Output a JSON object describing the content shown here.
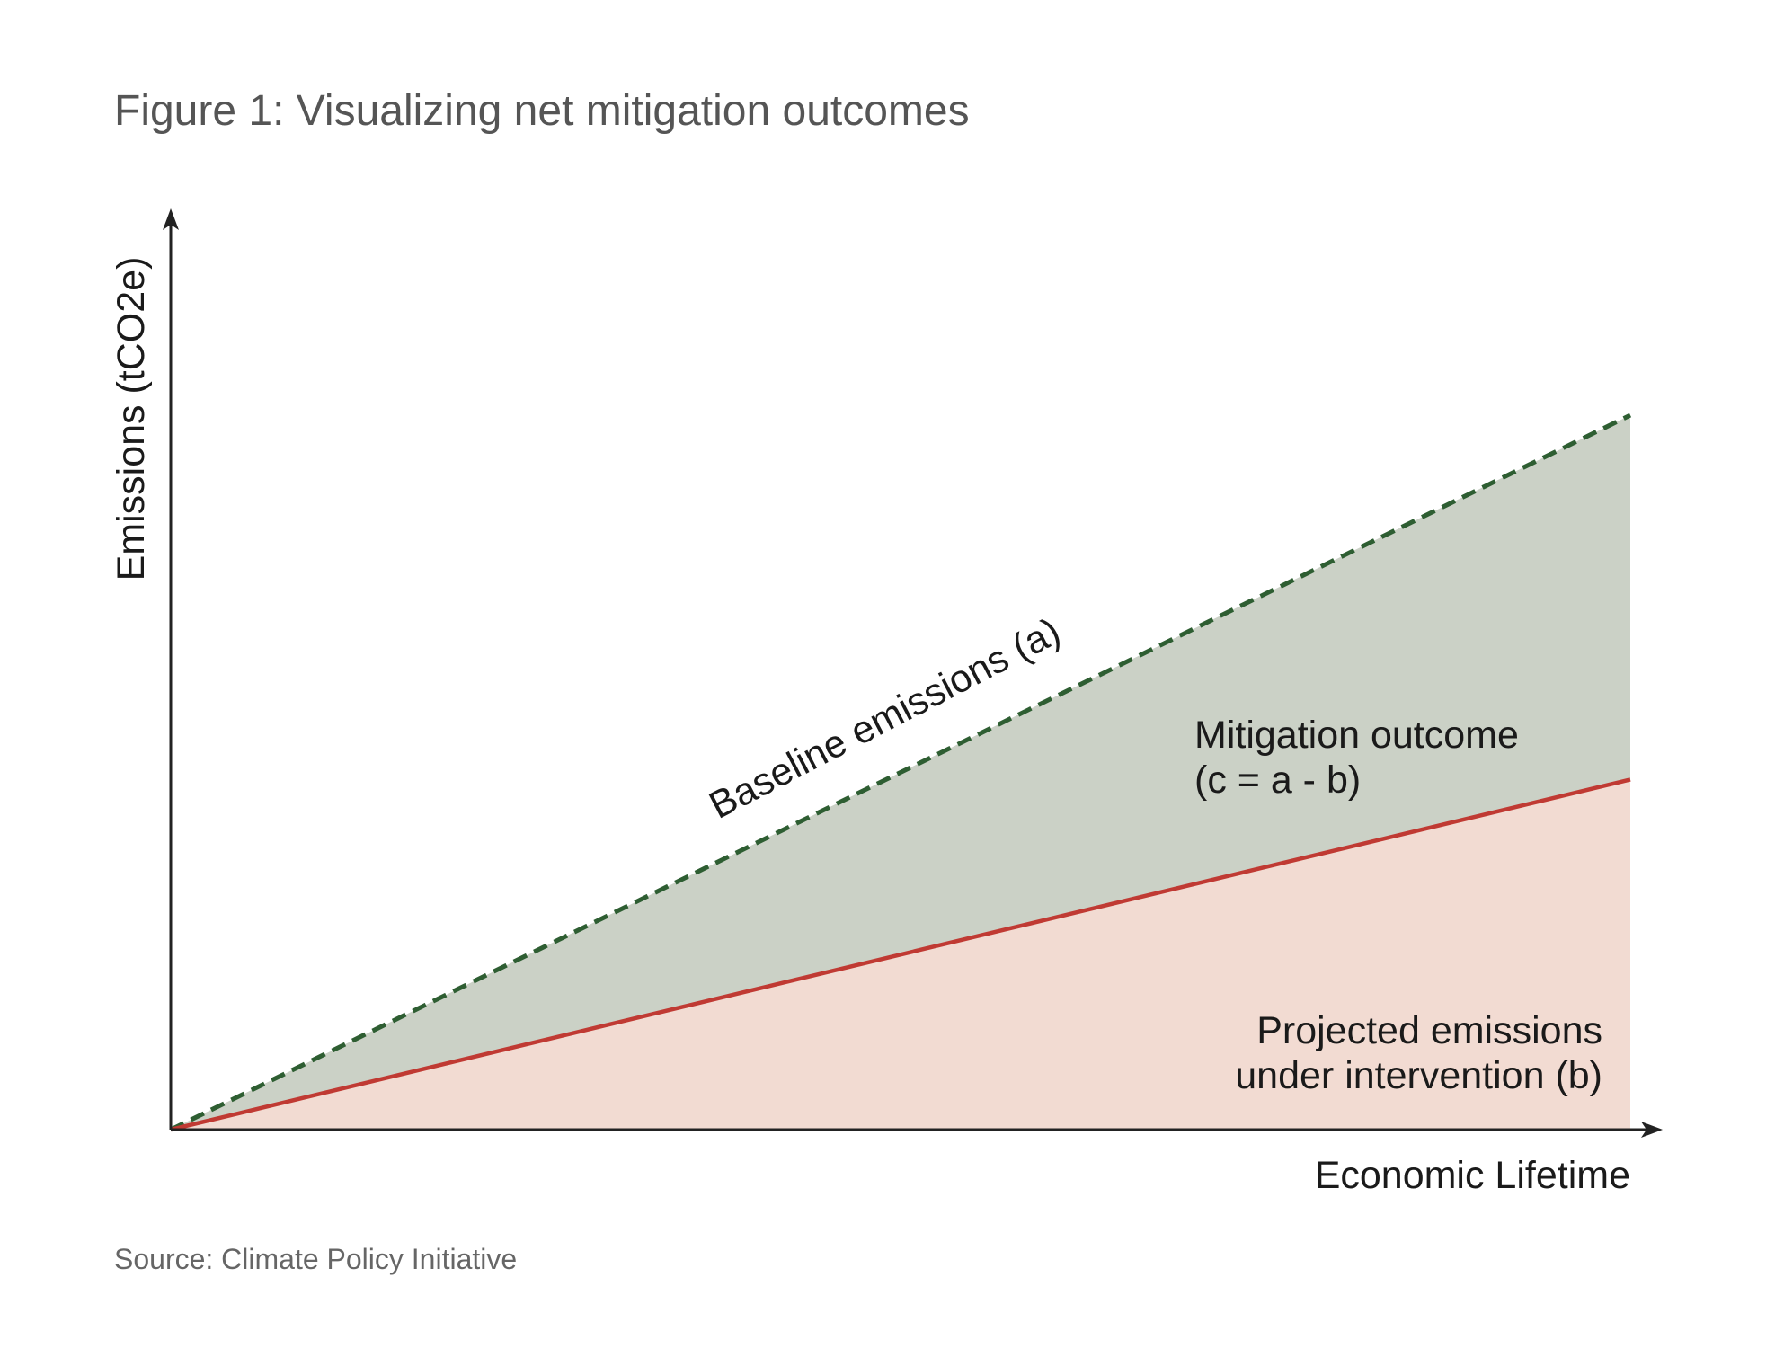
{
  "title": "Figure 1: Visualizing net mitigation outcomes",
  "source": "Source: Climate Policy Initiative",
  "chart_data": {
    "type": "area",
    "title": "Figure 1: Visualizing net mitigation outcomes",
    "xlabel": "Economic Lifetime",
    "ylabel": "Emissions (tCO2e)",
    "xlim": [
      0,
      1
    ],
    "ylim": [
      0,
      1.29
    ],
    "grid": false,
    "series": [
      {
        "name": "Baseline emissions (a)",
        "x": [
          0,
          1
        ],
        "values": [
          0,
          1
        ],
        "style": "dashed",
        "color": "#2e5e32",
        "fill": "#cbd1c6"
      },
      {
        "name": "Projected emissions under intervention (b)",
        "x": [
          0,
          1
        ],
        "values": [
          0,
          0.49
        ],
        "style": "solid",
        "color": "#c03a33",
        "fill": "#f2dbd2"
      }
    ],
    "annotations": {
      "baseline": "Baseline emissions (a)",
      "mitigation_line1": "Mitigation outcome",
      "mitigation_line2": "(c = a - b)",
      "projected_line1": "Projected emissions",
      "projected_line2": "under intervention (b)"
    }
  }
}
